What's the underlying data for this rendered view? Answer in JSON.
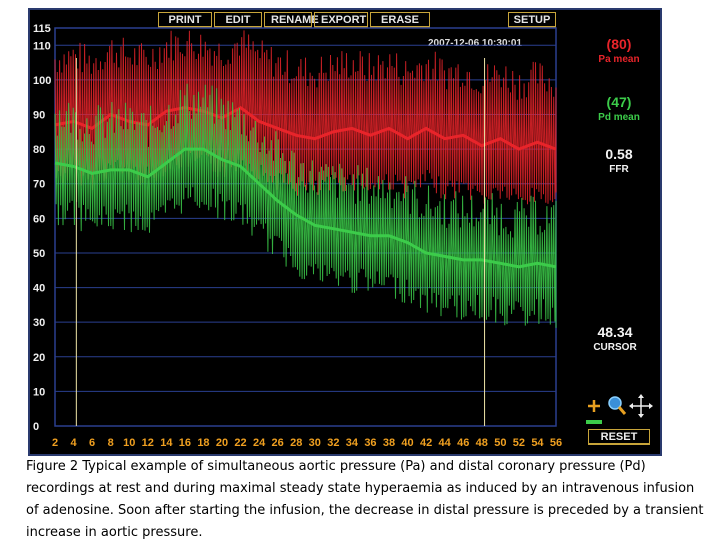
{
  "toolbar": {
    "print": "PRINT",
    "edit": "EDIT",
    "rename": "RENAME",
    "export": "EXPORT",
    "erase": "ERASE",
    "setup": "SETUP"
  },
  "timestamp": "2007-12-06 10:30:01",
  "readouts": {
    "pa_value": "(80)",
    "pa_label": "Pa mean",
    "pd_value": "(47)",
    "pd_label": "Pd mean",
    "ffr_value": "0.58",
    "ffr_label": "FFR",
    "cursor_value": "48.34",
    "cursor_label": "CURSOR"
  },
  "reset_label": "RESET",
  "colors": {
    "pa": "#e8242a",
    "pd": "#3ccc4a",
    "grid": "#2a3f8f",
    "cursor": "#f0e6a8",
    "axis_text": "#f0f0f0",
    "axis_x_text": "#f0a020"
  },
  "icons": [
    "zoom-in-icon",
    "magnifier-icon",
    "pan-arrows-icon",
    "zoom-slider-icon"
  ],
  "chart_data": {
    "type": "line",
    "y_ticks": [
      0,
      10,
      20,
      30,
      40,
      50,
      60,
      70,
      80,
      90,
      100,
      110,
      115
    ],
    "x_ticks": [
      "2",
      "4",
      "6",
      "8",
      "10",
      "12",
      "14",
      "16",
      "18",
      "20",
      "22",
      "24",
      "26",
      "28",
      "30",
      "32",
      "34",
      "36",
      "38",
      "40",
      "42",
      "44",
      "46",
      "48",
      "50",
      "52",
      "54",
      "56"
    ],
    "xlim": [
      2,
      56
    ],
    "ylim": [
      0,
      115
    ],
    "grid": true,
    "cursors_x": [
      4.3,
      48.3
    ],
    "series": [
      {
        "name": "Pa",
        "mean_points": [
          [
            2,
            87
          ],
          [
            4,
            88
          ],
          [
            6,
            86
          ],
          [
            8,
            90
          ],
          [
            10,
            88
          ],
          [
            12,
            87
          ],
          [
            14,
            91
          ],
          [
            16,
            92
          ],
          [
            18,
            91
          ],
          [
            20,
            89
          ],
          [
            22,
            92
          ],
          [
            24,
            88
          ],
          [
            26,
            86
          ],
          [
            28,
            84
          ],
          [
            30,
            83
          ],
          [
            32,
            85
          ],
          [
            34,
            86
          ],
          [
            36,
            84
          ],
          [
            38,
            86
          ],
          [
            40,
            83
          ],
          [
            42,
            86
          ],
          [
            44,
            83
          ],
          [
            46,
            84
          ],
          [
            48,
            81
          ],
          [
            50,
            83
          ],
          [
            52,
            80
          ],
          [
            54,
            82
          ],
          [
            56,
            80
          ]
        ],
        "systolic_range": [
          100,
          110
        ],
        "diastolic_range": [
          70,
          80
        ]
      },
      {
        "name": "Pd",
        "mean_points": [
          [
            2,
            76
          ],
          [
            4,
            75
          ],
          [
            6,
            73
          ],
          [
            8,
            74
          ],
          [
            10,
            74
          ],
          [
            12,
            72
          ],
          [
            14,
            76
          ],
          [
            16,
            80
          ],
          [
            18,
            80
          ],
          [
            20,
            77
          ],
          [
            22,
            75
          ],
          [
            24,
            70
          ],
          [
            26,
            65
          ],
          [
            28,
            61
          ],
          [
            30,
            58
          ],
          [
            32,
            57
          ],
          [
            34,
            56
          ],
          [
            36,
            55
          ],
          [
            38,
            55
          ],
          [
            40,
            53
          ],
          [
            42,
            50
          ],
          [
            44,
            49
          ],
          [
            46,
            48
          ],
          [
            48,
            48
          ],
          [
            50,
            47
          ],
          [
            52,
            46
          ],
          [
            54,
            47
          ],
          [
            56,
            46
          ]
        ],
        "systolic_range": [
          62,
          82
        ],
        "diastolic_range": [
          35,
          65
        ]
      }
    ]
  },
  "caption": "Figure 2 Typical example of simultaneous aortic pressure (Pa) and distal coronary pressure (Pd) recordings at rest and during maximal steady state hyperaemia as induced by an intravenous infusion of adenosine. Soon after starting the infusion, the decrease in distal pressure is preceded by a transient increase in aortic pressure."
}
